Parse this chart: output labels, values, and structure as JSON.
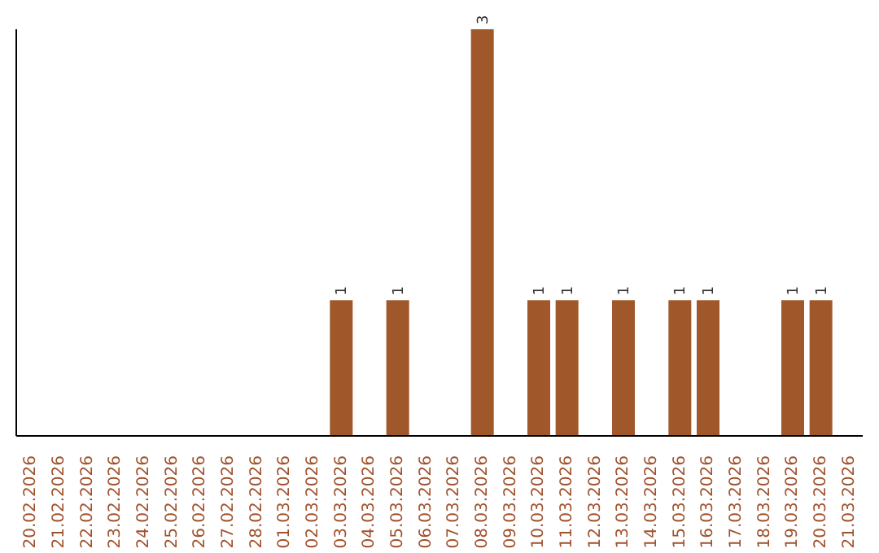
{
  "chart_data": {
    "type": "bar",
    "categories": [
      "20.02.2026",
      "21.02.2026",
      "22.02.2026",
      "23.02.2026",
      "24.02.2026",
      "25.02.2026",
      "26.02.2026",
      "27.02.2026",
      "28.02.2026",
      "01.03.2026",
      "02.03.2026",
      "03.03.2026",
      "04.03.2026",
      "05.03.2026",
      "06.03.2026",
      "07.03.2026",
      "08.03.2026",
      "09.03.2026",
      "10.03.2026",
      "11.03.2026",
      "12.03.2026",
      "13.03.2026",
      "14.03.2026",
      "15.03.2026",
      "16.03.2026",
      "17.03.2026",
      "18.03.2026",
      "19.03.2026",
      "20.03.2026",
      "21.03.2026"
    ],
    "values": [
      0,
      0,
      0,
      0,
      0,
      0,
      0,
      0,
      0,
      0,
      0,
      1,
      0,
      1,
      0,
      0,
      3,
      0,
      1,
      1,
      0,
      1,
      0,
      1,
      1,
      0,
      0,
      1,
      1,
      0
    ],
    "value_labels": [
      null,
      null,
      null,
      null,
      null,
      null,
      null,
      null,
      null,
      null,
      null,
      "1",
      null,
      "1",
      null,
      null,
      "3",
      null,
      "1",
      "1",
      null,
      "1",
      null,
      "1",
      "1",
      null,
      null,
      "1",
      "1",
      null
    ],
    "color": "#a0572a",
    "tick_labels": "x",
    "grid": false,
    "legend": false
  }
}
